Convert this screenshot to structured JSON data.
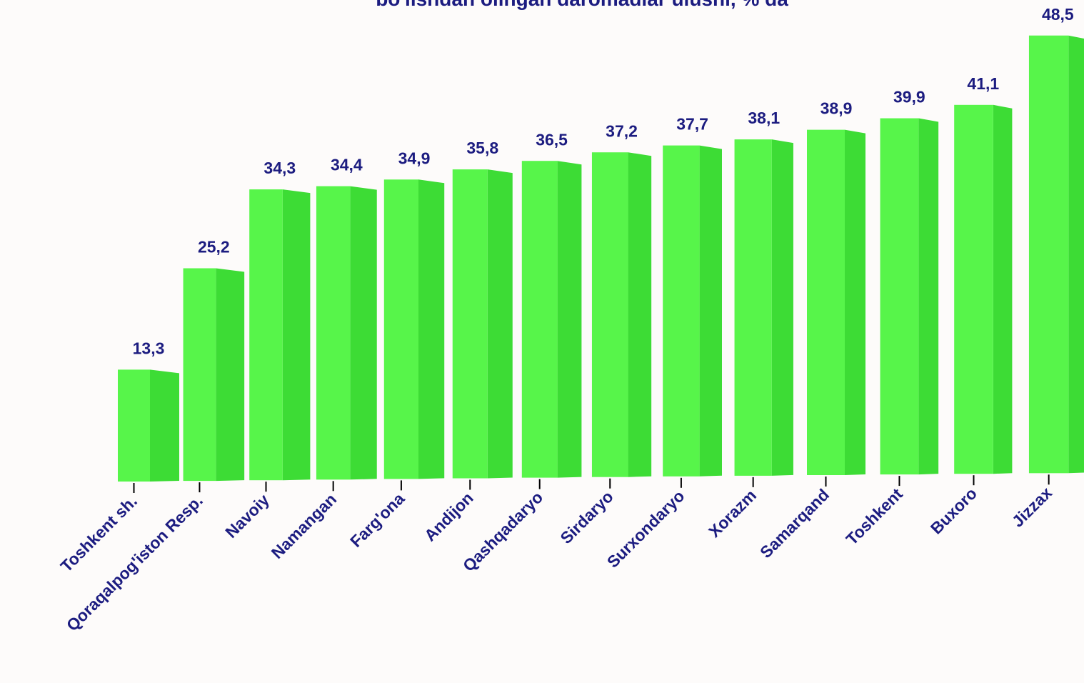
{
  "chart_data": {
    "type": "bar3d",
    "title": "bo'lishdan olingan daromadlar ulushi, % da",
    "categories": [
      "Toshkent sh.",
      "Qoraqalpog'iston Resp.",
      "Navoiy",
      "Namangan",
      "Farg'ona",
      "Andijon",
      "Qashqadaryo",
      "Sirdaryo",
      "Surxondaryo",
      "Xorazm",
      "Samarqand",
      "Toshkent",
      "Buxoro",
      "Jizzax"
    ],
    "values": [
      13.3,
      25.2,
      34.3,
      34.4,
      34.9,
      35.8,
      36.5,
      37.2,
      37.7,
      38.1,
      38.9,
      39.9,
      41.1,
      48.5
    ],
    "value_labels": [
      "13,3",
      "25,2",
      "34,3",
      "34,4",
      "34,9",
      "35,8",
      "36,5",
      "37,2",
      "37,7",
      "38,1",
      "38,9",
      "39,9",
      "41,1",
      "48,5"
    ],
    "color": "#57f54a",
    "side_color": "#3ddc35"
  }
}
